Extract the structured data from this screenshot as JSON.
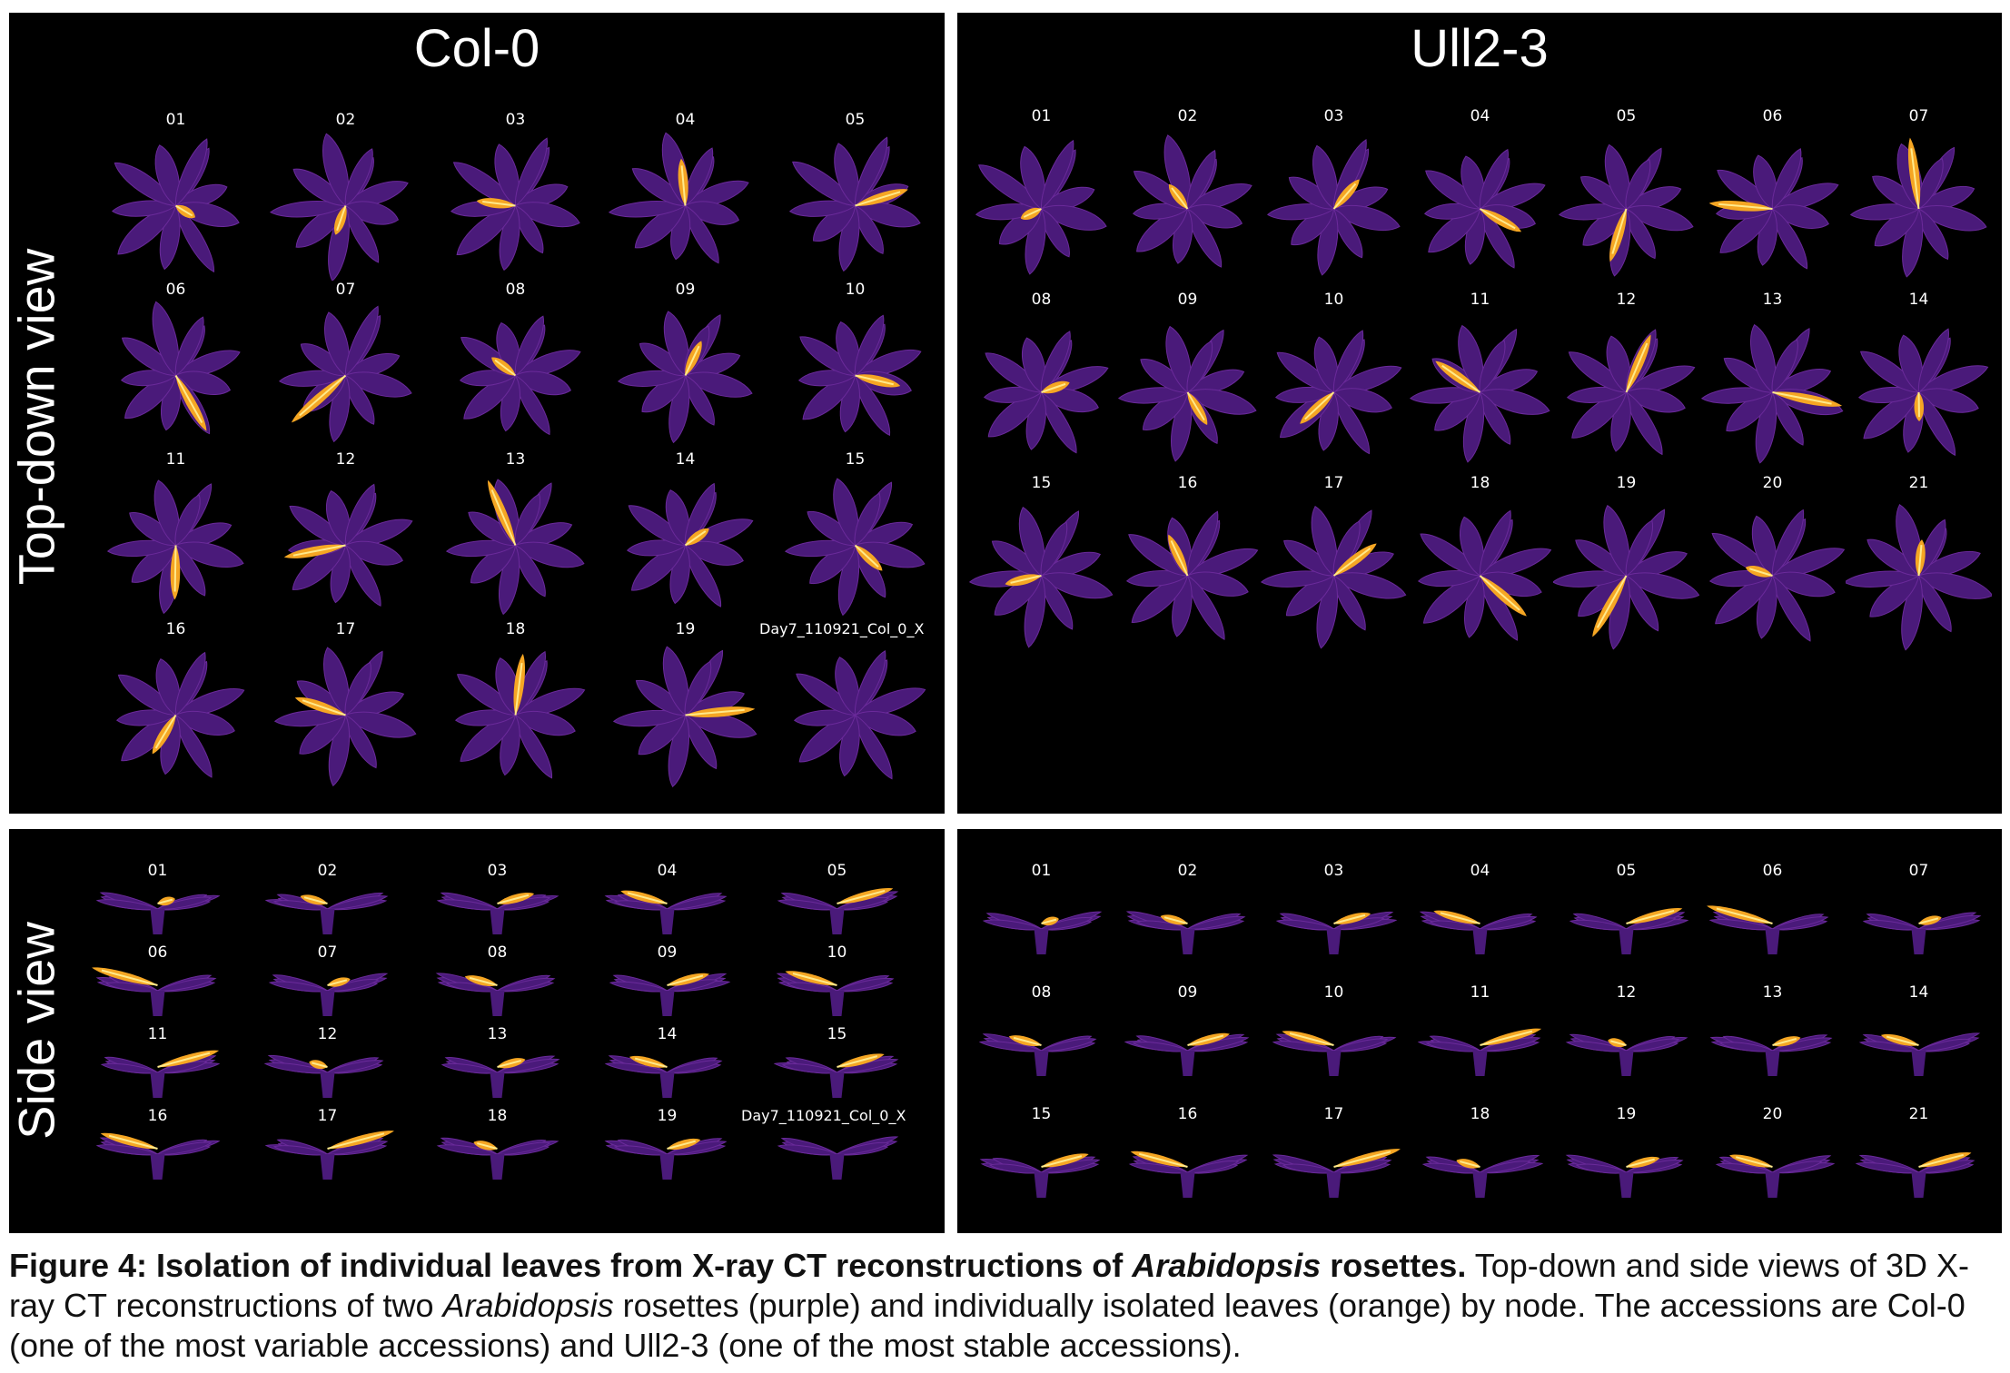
{
  "headers": {
    "col0": "Col-0",
    "ull23": "Ull2-3"
  },
  "row_labels": {
    "top": "Top-down view",
    "side": "Side view"
  },
  "col0_file_label": "Day7_110921_Col_0_X",
  "col0_nodes": [
    "01",
    "02",
    "03",
    "04",
    "05",
    "06",
    "07",
    "08",
    "09",
    "10",
    "11",
    "12",
    "13",
    "14",
    "15",
    "16",
    "17",
    "18",
    "19"
  ],
  "ull23_nodes": [
    "01",
    "02",
    "03",
    "04",
    "05",
    "06",
    "07",
    "08",
    "09",
    "10",
    "11",
    "12",
    "13",
    "14",
    "15",
    "16",
    "17",
    "18",
    "19",
    "20",
    "21"
  ],
  "caption": {
    "bold_prefix": "Figure 4: Isolation of individual leaves from X-ray CT reconstructions of ",
    "bold_italic": "Arabidopsis",
    "bold_suffix": " rosettes.",
    "text_1": " Top-down and side views of 3D X-ray CT reconstructions of two ",
    "italic": "Arabidopsis",
    "text_2": " rosettes (purple) and individually isolated leaves (orange) by node. The accessions are Col-0 (one of the most variable accessions) and Ull2-3 (one of the most stable accessions)."
  },
  "colors": {
    "rosette": "#4a1a7a",
    "rosette_edge": "#6a2a9a",
    "leaf_highlight": "#f5a623",
    "leaf_core": "#ffe98a",
    "panel_bg": "#000000"
  }
}
